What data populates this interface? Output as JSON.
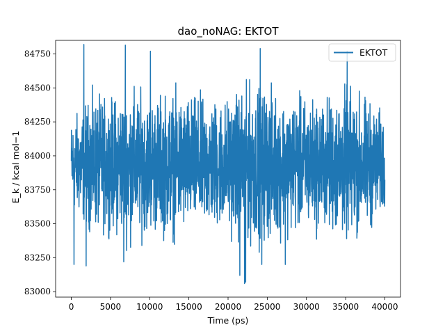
{
  "chart_data": {
    "type": "line",
    "title": "dao_noNAG: EKTOT",
    "xlabel": "Time (ps)",
    "ylabel": "E_k / kcal mol−1",
    "xlim": [
      -2000,
      42000
    ],
    "ylim": [
      82960,
      84850
    ],
    "xticks": [
      0,
      5000,
      10000,
      15000,
      20000,
      25000,
      30000,
      35000,
      40000
    ],
    "yticks": [
      83000,
      83250,
      83500,
      83750,
      84000,
      84250,
      84500,
      84750
    ],
    "legend": {
      "position": "top-right",
      "entries": [
        "EKTOT"
      ]
    },
    "grid": false,
    "series": [
      {
        "name": "EKTOT",
        "color": "#1f77b4",
        "x_start": 0,
        "x_end": 40000,
        "mean": 83935,
        "std": 180,
        "min": 83060,
        "max": 84820,
        "envelope_x": [
          0,
          2500,
          5000,
          7500,
          10000,
          12500,
          15000,
          17500,
          20000,
          22500,
          25000,
          27500,
          30000,
          32500,
          35000,
          37500,
          40000
        ],
        "envelope_upper": [
          84380,
          84620,
          84610,
          84720,
          84620,
          84680,
          84600,
          84560,
          84580,
          84560,
          84700,
          84580,
          84620,
          84570,
          84710,
          84600,
          84500
        ],
        "envelope_lower": [
          83530,
          83370,
          83390,
          83280,
          83380,
          83320,
          83330,
          83320,
          83340,
          83080,
          83280,
          83330,
          83370,
          83330,
          83300,
          83330,
          83580
        ],
        "spikes": [
          {
            "x": 1600,
            "y": 84820
          },
          {
            "x": 6900,
            "y": 84815
          },
          {
            "x": 10100,
            "y": 84770
          },
          {
            "x": 24100,
            "y": 84790
          },
          {
            "x": 35200,
            "y": 84770
          },
          {
            "x": 350,
            "y": 83200
          },
          {
            "x": 1900,
            "y": 83190
          },
          {
            "x": 6700,
            "y": 83220
          },
          {
            "x": 21500,
            "y": 83120
          },
          {
            "x": 22100,
            "y": 83060
          },
          {
            "x": 22250,
            "y": 83070
          },
          {
            "x": 24300,
            "y": 83200
          },
          {
            "x": 27300,
            "y": 83200
          }
        ]
      }
    ]
  }
}
